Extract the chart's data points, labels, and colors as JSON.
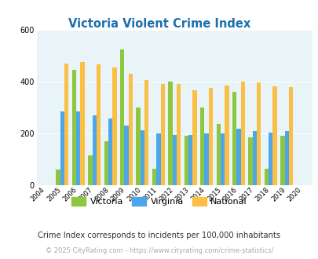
{
  "title": "Victoria Violent Crime Index",
  "years": [
    2004,
    2005,
    2006,
    2007,
    2008,
    2009,
    2010,
    2011,
    2012,
    2013,
    2014,
    2015,
    2016,
    2017,
    2018,
    2019,
    2020
  ],
  "victoria": [
    null,
    60,
    445,
    115,
    170,
    525,
    300,
    65,
    400,
    190,
    300,
    235,
    360,
    185,
    65,
    190,
    null
  ],
  "virginia": [
    null,
    285,
    285,
    270,
    258,
    230,
    213,
    200,
    193,
    195,
    200,
    200,
    218,
    208,
    202,
    208,
    null
  ],
  "national": [
    null,
    470,
    475,
    465,
    455,
    430,
    405,
    390,
    390,
    365,
    375,
    385,
    400,
    397,
    383,
    380,
    null
  ],
  "victoria_color": "#8dc63f",
  "virginia_color": "#4da6e8",
  "national_color": "#fbbf45",
  "bg_color": "#e8f4f8",
  "title_color": "#1a6faf",
  "ylabel_max": 600,
  "yticks": [
    0,
    200,
    400,
    600
  ],
  "subtitle": "Crime Index corresponds to incidents per 100,000 inhabitants",
  "footer": "© 2025 CityRating.com - https://www.cityrating.com/crime-statistics/",
  "legend_labels": [
    "Victoria",
    "Virginia",
    "National"
  ],
  "subtitle_color": "#333333",
  "footer_color": "#aaaaaa"
}
